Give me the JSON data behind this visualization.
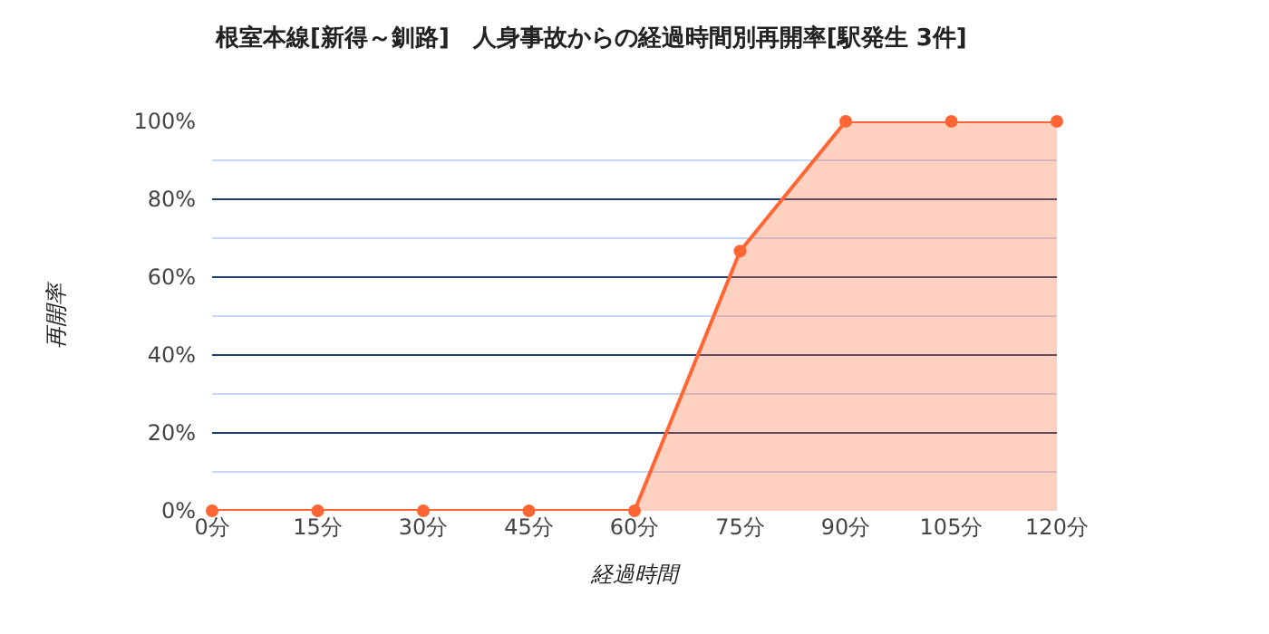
{
  "chart_data": {
    "type": "area",
    "title": "根室本線[新得～釧路]　人身事故からの経過時間別再開率[駅発生 3件]",
    "xlabel": "経過時間",
    "ylabel": "再開率",
    "categories": [
      "0分",
      "15分",
      "30分",
      "45分",
      "60分",
      "75分",
      "90分",
      "105分",
      "120分"
    ],
    "series": [
      {
        "color": "#ff6633",
        "values": [
          0,
          0,
          0,
          0,
          0,
          66.7,
          100,
          100,
          100
        ]
      }
    ],
    "ylim": [
      0,
      100
    ],
    "yticks": [
      {
        "value": 0,
        "label": "0%"
      },
      {
        "value": 10,
        "label": null
      },
      {
        "value": 20,
        "label": "20%"
      },
      {
        "value": 30,
        "label": null
      },
      {
        "value": 40,
        "label": "40%"
      },
      {
        "value": 50,
        "label": null
      },
      {
        "value": 60,
        "label": "60%"
      },
      {
        "value": 70,
        "label": null
      },
      {
        "value": 80,
        "label": "80%"
      },
      {
        "value": 90,
        "label": null
      },
      {
        "value": 100,
        "label": "100%"
      }
    ],
    "grid": "y",
    "marker": "circle"
  }
}
